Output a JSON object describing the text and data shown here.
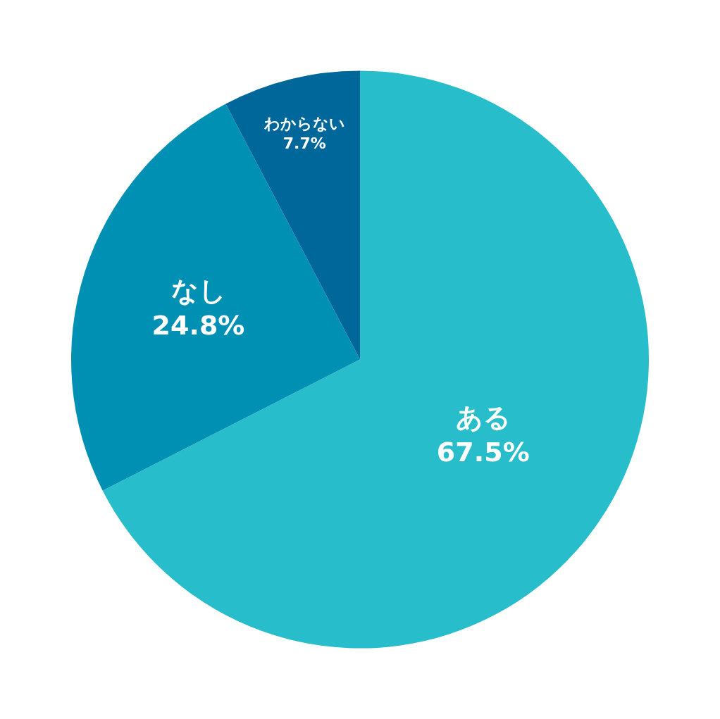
{
  "chart_data": {
    "type": "pie",
    "categories": [
      "ある",
      "なし",
      "わからない"
    ],
    "values": [
      67.5,
      24.8,
      7.7
    ],
    "value_labels": [
      "67.5%",
      "24.8%",
      "7.7%"
    ],
    "colors": [
      "#28bdca",
      "#0090b4",
      "#00679a"
    ],
    "legend": false
  }
}
